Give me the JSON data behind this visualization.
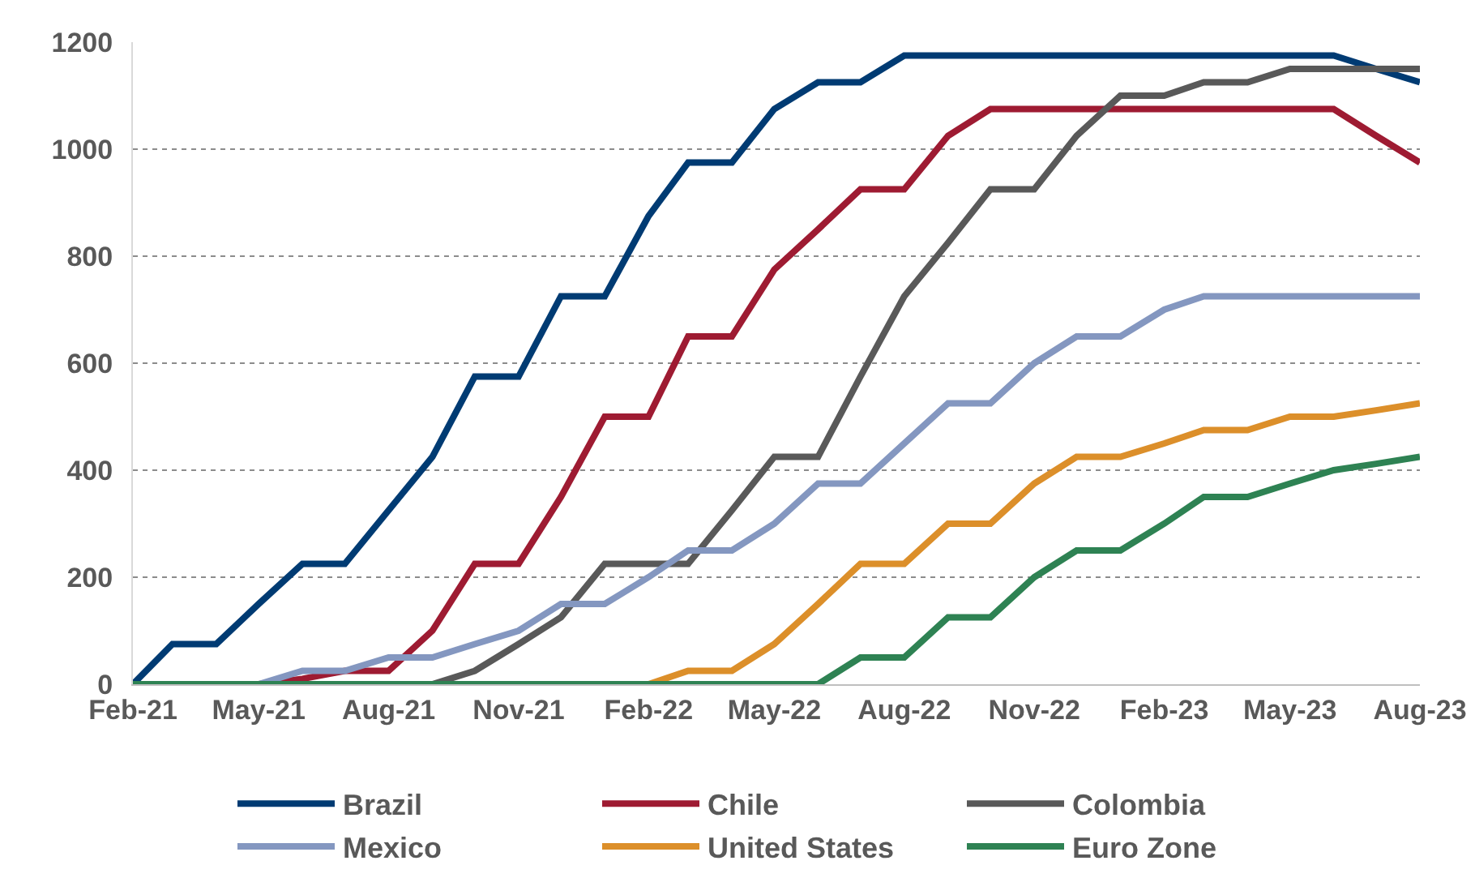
{
  "chart_data": {
    "type": "line",
    "x": [
      "2021-02",
      "2021-03",
      "2021-04",
      "2021-05",
      "2021-06",
      "2021-07",
      "2021-08",
      "2021-09",
      "2021-10",
      "2021-11",
      "2021-12",
      "2022-01",
      "2022-02",
      "2022-03",
      "2022-04",
      "2022-05",
      "2022-06",
      "2022-07",
      "2022-08",
      "2022-09",
      "2022-10",
      "2022-11",
      "2022-12",
      "2023-01",
      "2023-02",
      "2023-03",
      "2023-04",
      "2023-05",
      "2023-06",
      "2023-07",
      "2023-08"
    ],
    "series": [
      {
        "name": "Brazil",
        "color": "#003b73",
        "values": [
          0,
          75,
          75,
          150,
          225,
          225,
          325,
          425,
          575,
          575,
          725,
          725,
          875,
          975,
          975,
          1075,
          1125,
          1125,
          1175,
          1175,
          1175,
          1175,
          1175,
          1175,
          1175,
          1175,
          1175,
          1175,
          1175,
          1150,
          1125
        ]
      },
      {
        "name": "Chile",
        "color": "#9e1b32",
        "values": [
          null,
          null,
          null,
          0,
          10,
          25,
          25,
          100,
          225,
          225,
          350,
          500,
          500,
          650,
          650,
          775,
          850,
          925,
          925,
          1025,
          1075,
          1075,
          1075,
          1075,
          1075,
          1075,
          1075,
          1075,
          1075,
          1025,
          975
        ]
      },
      {
        "name": "Colombia",
        "color": "#595959",
        "values": [
          null,
          null,
          null,
          null,
          null,
          null,
          null,
          0,
          25,
          75,
          125,
          225,
          225,
          225,
          325,
          425,
          425,
          575,
          725,
          825,
          925,
          925,
          1025,
          1100,
          1100,
          1125,
          1125,
          1150,
          1150,
          1150,
          1150
        ]
      },
      {
        "name": "Mexico",
        "color": "#8497c0",
        "values": [
          null,
          null,
          null,
          0,
          25,
          25,
          50,
          50,
          75,
          100,
          150,
          150,
          200,
          250,
          250,
          300,
          375,
          375,
          450,
          525,
          525,
          600,
          650,
          650,
          700,
          725,
          725,
          725,
          725,
          725,
          725
        ]
      },
      {
        "name": "United States",
        "color": "#dc8f2a",
        "values": [
          null,
          null,
          null,
          null,
          null,
          null,
          null,
          null,
          null,
          null,
          null,
          null,
          0,
          25,
          25,
          75,
          150,
          225,
          225,
          300,
          300,
          375,
          425,
          425,
          450,
          475,
          475,
          500,
          500,
          512,
          525
        ]
      },
      {
        "name": "Euro Zone",
        "color": "#2e8253",
        "values": [
          0,
          0,
          0,
          0,
          0,
          0,
          0,
          0,
          0,
          0,
          0,
          0,
          0,
          0,
          0,
          0,
          0,
          50,
          50,
          125,
          125,
          200,
          250,
          250,
          300,
          350,
          350,
          375,
          400,
          412,
          425
        ]
      }
    ],
    "xlim": [
      "2021-02",
      "2023-08"
    ],
    "xticks": [
      {
        "value": "2021-02",
        "label": "Feb-21"
      },
      {
        "value": "2021-05",
        "label": "May-21"
      },
      {
        "value": "2021-08",
        "label": "Aug-21"
      },
      {
        "value": "2021-11",
        "label": "Nov-21"
      },
      {
        "value": "2022-02",
        "label": "Feb-22"
      },
      {
        "value": "2022-05",
        "label": "May-22"
      },
      {
        "value": "2022-08",
        "label": "Aug-22"
      },
      {
        "value": "2022-11",
        "label": "Nov-22"
      },
      {
        "value": "2023-02",
        "label": "Feb-23"
      },
      {
        "value": "2023-05",
        "label": "May-23"
      },
      {
        "value": "2023-08",
        "label": "Aug-23"
      }
    ],
    "ylim": [
      0,
      1200
    ],
    "yticks": [
      0,
      200,
      400,
      600,
      800,
      1000,
      1200
    ],
    "grid": "y",
    "legend": "bottom",
    "marker": "none",
    "line_style": "solid"
  }
}
